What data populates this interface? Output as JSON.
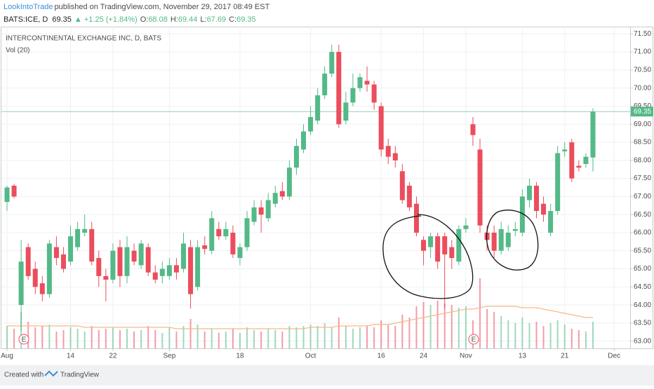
{
  "header": {
    "author": "LookIntoTrade",
    "published": "published on TradingView.com, November 29, 2017 08:49 EST",
    "symbol": "BATS:ICE, D",
    "price": "69.35",
    "change": "▲ +1.25 (+1.84%)",
    "ohlc": [
      {
        "label": "O:",
        "value": "68.08"
      },
      {
        "label": "H:",
        "value": "69.44"
      },
      {
        "label": "L:",
        "value": "67.69"
      },
      {
        "label": "C:",
        "value": "69.35"
      }
    ]
  },
  "chart_data": {
    "type": "candlestick",
    "title": "INTERCONTINENTAL EXCHANGE INC, D, BATS",
    "volume_label": "Vol (20)",
    "up_color": "#53b987",
    "down_color": "#eb4d5c",
    "ma_color": "#f7b98b",
    "open": [
      66.85,
      67.3,
      64.0,
      65.6,
      65.0,
      64.6,
      64.3,
      65.6,
      65.4,
      65.2,
      65.6,
      66.0,
      66.1,
      65.3,
      64.8,
      64.7,
      65.6,
      64.8,
      65.5,
      65.1,
      65.6,
      64.9,
      64.8,
      64.8,
      65.1,
      65.0,
      65.6,
      64.5,
      65.65,
      65.5,
      66.1,
      65.9,
      66.0,
      65.3,
      65.6,
      66.3,
      66.7,
      66.4,
      66.8,
      67.15,
      67.0,
      67.8,
      68.3,
      68.8,
      69.1,
      69.8,
      70.4,
      71.0,
      69.1,
      69.6,
      70.0,
      70.2,
      70.1,
      69.5,
      68.4,
      68.2,
      67.7,
      67.3,
      66.8,
      65.8,
      65.6,
      65.9,
      65.9,
      65.6,
      65.2,
      66.1,
      69.0,
      68.3,
      66.0,
      66.0,
      65.5,
      65.6,
      66.05,
      66.0,
      66.9,
      67.3,
      66.8,
      66.0,
      66.6,
      68.25,
      68.5,
      67.85,
      67.9,
      68.08
    ],
    "high": [
      67.3,
      67.35,
      65.8,
      65.7,
      65.2,
      64.8,
      65.8,
      65.9,
      65.6,
      66.2,
      66.3,
      66.5,
      66.3,
      65.5,
      65.0,
      65.7,
      65.8,
      65.9,
      65.7,
      65.8,
      65.7,
      65.1,
      65.2,
      65.3,
      65.3,
      66.0,
      65.8,
      65.8,
      65.9,
      66.6,
      66.3,
      66.3,
      66.2,
      65.7,
      66.6,
      66.9,
      66.9,
      67.1,
      67.3,
      67.4,
      68.0,
      68.6,
      69.0,
      69.5,
      70.0,
      70.6,
      71.2,
      71.2,
      69.9,
      70.4,
      70.4,
      70.6,
      70.2,
      69.6,
      68.6,
      68.4,
      67.9,
      67.4,
      67.0,
      65.9,
      66.0,
      66.0,
      66.0,
      65.8,
      66.2,
      66.4,
      69.2,
      68.6,
      66.2,
      66.2,
      66.3,
      66.2,
      66.3,
      67.2,
      67.5,
      67.4,
      67.0,
      66.8,
      68.4,
      68.5,
      68.6,
      68.0,
      68.2,
      69.44
    ],
    "low": [
      66.6,
      66.95,
      63.3,
      64.7,
      64.3,
      64.1,
      64.2,
      65.1,
      64.9,
      65.1,
      65.5,
      65.9,
      65.1,
      64.5,
      64.1,
      64.6,
      64.5,
      64.6,
      65.1,
      65.0,
      64.8,
      64.6,
      64.6,
      64.7,
      64.7,
      64.9,
      63.9,
      64.4,
      65.4,
      65.4,
      65.8,
      65.8,
      65.3,
      65.1,
      65.5,
      66.2,
      66.0,
      66.3,
      66.7,
      66.9,
      66.9,
      67.6,
      68.2,
      68.7,
      69.0,
      69.7,
      70.3,
      68.9,
      69.0,
      69.5,
      69.9,
      69.9,
      69.4,
      68.1,
      67.9,
      67.8,
      66.8,
      66.6,
      65.9,
      65.1,
      65.3,
      65.0,
      63.9,
      65.0,
      65.1,
      66.0,
      68.4,
      66.0,
      65.5,
      65.3,
      65.4,
      65.5,
      65.9,
      65.9,
      66.7,
      66.4,
      66.3,
      65.9,
      66.5,
      68.1,
      67.4,
      67.7,
      67.8,
      67.69
    ],
    "close": [
      67.25,
      67.0,
      65.2,
      64.8,
      64.5,
      64.3,
      65.7,
      65.3,
      65.0,
      65.9,
      66.1,
      66.1,
      65.2,
      64.8,
      64.7,
      65.5,
      64.8,
      65.6,
      65.2,
      65.7,
      64.9,
      64.7,
      65.0,
      65.1,
      64.9,
      65.7,
      64.3,
      65.6,
      65.55,
      66.4,
      65.9,
      66.1,
      65.4,
      65.6,
      66.4,
      66.7,
      66.5,
      66.9,
      67.1,
      67.0,
      67.8,
      68.4,
      68.8,
      69.2,
      69.8,
      70.4,
      71.0,
      69.0,
      69.6,
      70.0,
      70.3,
      70.1,
      69.6,
      68.3,
      68.1,
      68.0,
      66.9,
      66.7,
      66.0,
      65.5,
      65.9,
      65.2,
      65.4,
      65.3,
      66.1,
      66.2,
      68.7,
      66.2,
      65.8,
      65.5,
      66.1,
      66.0,
      66.1,
      67.0,
      67.3,
      66.6,
      66.5,
      66.6,
      68.2,
      68.3,
      67.5,
      67.8,
      68.1,
      69.35
    ],
    "volume": [
      1.6,
      1.4,
      2.6,
      1.9,
      1.5,
      1.6,
      1.7,
      1.2,
      1.3,
      1.5,
      1.4,
      1.2,
      1.6,
      1.3,
      1.4,
      1.5,
      1.3,
      1.4,
      1.2,
      1.3,
      1.6,
      1.3,
      1.1,
      1.5,
      1.2,
      1.6,
      2.1,
      1.7,
      1.2,
      1.4,
      1.1,
      1.2,
      1.4,
      1.1,
      1.5,
      1.3,
      1.2,
      1.4,
      1.3,
      1.2,
      1.6,
      1.5,
      1.6,
      1.7,
      1.6,
      1.8,
      1.5,
      2.2,
      1.6,
      1.4,
      1.5,
      1.6,
      1.5,
      2.0,
      1.7,
      1.6,
      2.4,
      2.2,
      3.0,
      3.3,
      3.1,
      3.4,
      3.2,
      3.1,
      2.9,
      3.0,
      2.0,
      5.0,
      2.8,
      2.6,
      2.3,
      2.0,
      1.8,
      2.2,
      1.8,
      1.9,
      1.6,
      1.8,
      2.0,
      1.7,
      1.4,
      1.3,
      1.2,
      1.9
    ],
    "volume_ma": [
      1.6,
      1.6,
      1.6,
      1.6,
      1.6,
      1.6,
      1.6,
      1.6,
      1.6,
      1.6,
      1.6,
      1.5,
      1.5,
      1.5,
      1.5,
      1.5,
      1.5,
      1.5,
      1.5,
      1.5,
      1.5,
      1.5,
      1.5,
      1.5,
      1.4,
      1.4,
      1.4,
      1.4,
      1.4,
      1.4,
      1.4,
      1.4,
      1.4,
      1.4,
      1.4,
      1.4,
      1.4,
      1.4,
      1.4,
      1.4,
      1.4,
      1.4,
      1.4,
      1.5,
      1.5,
      1.5,
      1.5,
      1.6,
      1.6,
      1.6,
      1.6,
      1.6,
      1.7,
      1.7,
      1.7,
      1.8,
      1.9,
      2.0,
      2.1,
      2.2,
      2.3,
      2.4,
      2.5,
      2.6,
      2.7,
      2.8,
      2.8,
      2.9,
      3.0,
      3.0,
      3.0,
      3.0,
      3.0,
      2.9,
      2.9,
      2.9,
      2.8,
      2.7,
      2.6,
      2.5,
      2.4,
      2.3,
      2.2,
      2.2
    ],
    "last_price": {
      "value": 69.35,
      "label": "69.35"
    },
    "earnings_markers": [
      "E",
      "E"
    ],
    "ylim": [
      62.8,
      71.7
    ],
    "yticks": [
      {
        "value": 63.0,
        "label": "63.00"
      },
      {
        "value": 63.5,
        "label": "63.50"
      },
      {
        "value": 64.0,
        "label": "64.00"
      },
      {
        "value": 64.5,
        "label": "64.50"
      },
      {
        "value": 65.0,
        "label": "65.00"
      },
      {
        "value": 65.5,
        "label": "65.50"
      },
      {
        "value": 66.0,
        "label": "66.00"
      },
      {
        "value": 66.5,
        "label": "66.50"
      },
      {
        "value": 67.0,
        "label": "67.00"
      },
      {
        "value": 67.5,
        "label": "67.50"
      },
      {
        "value": 68.0,
        "label": "68.00"
      },
      {
        "value": 68.5,
        "label": "68.50"
      },
      {
        "value": 69.0,
        "label": "69.00"
      },
      {
        "value": 69.5,
        "label": "69.50"
      },
      {
        "value": 70.0,
        "label": "70.00"
      },
      {
        "value": 70.5,
        "label": "70.50"
      },
      {
        "value": 71.0,
        "label": "71.00"
      },
      {
        "value": 71.5,
        "label": "71.50"
      }
    ],
    "xticks": [
      {
        "value": 0,
        "label": "Aug"
      },
      {
        "value": 9,
        "label": "14"
      },
      {
        "value": 15,
        "label": "22"
      },
      {
        "value": 23,
        "label": "Sep"
      },
      {
        "value": 33,
        "label": "18"
      },
      {
        "value": 43,
        "label": "Oct"
      },
      {
        "value": 53,
        "label": "16"
      },
      {
        "value": 59,
        "label": "24"
      },
      {
        "value": 65,
        "label": "Nov"
      },
      {
        "value": 73,
        "label": "13"
      },
      {
        "value": 79,
        "label": "21"
      },
      {
        "value": 86,
        "label": "Dec"
      }
    ],
    "grid": true
  },
  "footer": {
    "created": "Created with",
    "brand": "TradingView"
  }
}
